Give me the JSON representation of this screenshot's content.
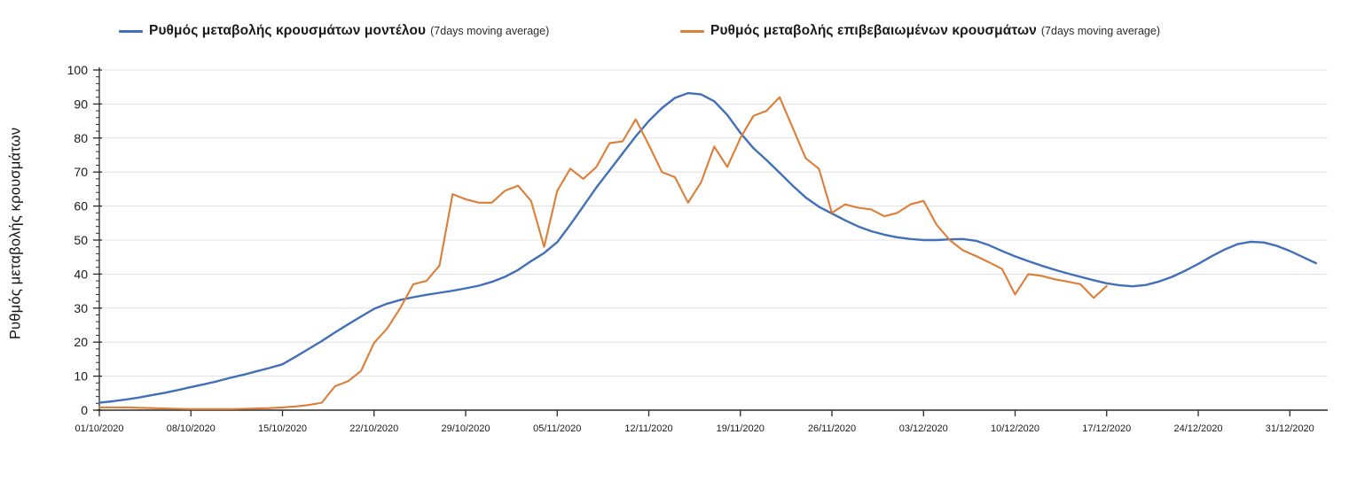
{
  "legend": {
    "series1": {
      "label": "Ρυθμός μεταβολής κρουσμάτων μοντέλου",
      "suffix": "(7days moving average)",
      "color": "#4170b8"
    },
    "series2": {
      "label": "Ρυθμός μεταβολής επιβεβαιωμένων κρουσμάτων",
      "suffix": "(7days moving average)",
      "color": "#dd7e38"
    }
  },
  "chart_data": {
    "type": "line",
    "title": "",
    "xlabel": "",
    "ylabel": "Ρυθμός μεταβολής κρουσμάτων",
    "ylim": [
      0,
      100
    ],
    "y_major_ticks": [
      0,
      10,
      20,
      30,
      40,
      50,
      60,
      70,
      80,
      90,
      100
    ],
    "y_minor_step": 2,
    "grid": "horizontal-light",
    "legend_position": "top",
    "x_tick_labels": [
      "01/10/2020",
      "08/10/2020",
      "15/10/2020",
      "22/10/2020",
      "29/10/2020",
      "05/11/2020",
      "12/11/2020",
      "19/11/2020",
      "26/11/2020",
      "03/12/2020",
      "10/12/2020",
      "17/12/2020",
      "24/12/2020",
      "31/12/2020"
    ],
    "x_tick_day_indices": [
      0,
      7,
      14,
      21,
      28,
      35,
      42,
      49,
      56,
      63,
      70,
      77,
      84,
      91
    ],
    "x_days_total": 93,
    "series": [
      {
        "name": "Ρυθμός μεταβολής κρουσμάτων μοντέλου (7days moving average)",
        "color": "#4170b8",
        "line_width": 2.4,
        "start_day": 0,
        "values": [
          2.2,
          2.6,
          3.1,
          3.7,
          4.4,
          5.1,
          5.9,
          6.8,
          7.6,
          8.5,
          9.5,
          10.4,
          11.4,
          12.4,
          13.5,
          15.7,
          18.0,
          20.3,
          22.8,
          25.2,
          27.5,
          29.8,
          31.3,
          32.4,
          33.2,
          33.9,
          34.5,
          35.1,
          35.8,
          36.6,
          37.7,
          39.2,
          41.2,
          43.8,
          46.2,
          49.4,
          54.5,
          60.0,
          65.5,
          70.5,
          75.5,
          80.5,
          85.0,
          88.8,
          91.8,
          93.2,
          92.8,
          90.8,
          86.8,
          81.5,
          77.0,
          73.5,
          69.8,
          66.0,
          62.5,
          59.8,
          57.8,
          55.8,
          54.0,
          52.6,
          51.6,
          50.8,
          50.3,
          50.0,
          50.0,
          50.2,
          50.3,
          49.8,
          48.5,
          46.8,
          45.2,
          43.8,
          42.5,
          41.3,
          40.2,
          39.2,
          38.2,
          37.3,
          36.7,
          36.4,
          36.8,
          37.8,
          39.2,
          41.0,
          43.0,
          45.2,
          47.2,
          48.8,
          49.5,
          49.3,
          48.3,
          46.8,
          45.0,
          43.2
        ]
      },
      {
        "name": "Ρυθμός μεταβολής επιβεβαιωμένων κρουσμάτων (7days moving average)",
        "color": "#dd7e38",
        "line_width": 2.1,
        "start_day": 0,
        "values": [
          0.8,
          0.8,
          0.8,
          0.7,
          0.6,
          0.5,
          0.4,
          0.3,
          0.3,
          0.3,
          0.3,
          0.4,
          0.5,
          0.6,
          0.8,
          1.1,
          1.5,
          2.2,
          7.0,
          8.5,
          11.5,
          19.8,
          24.0,
          30.0,
          37.0,
          38.0,
          42.5,
          63.5,
          62.0,
          61.0,
          61.0,
          64.5,
          66.0,
          61.5,
          48.0,
          64.5,
          71.0,
          68.0,
          71.5,
          78.5,
          79.0,
          85.5,
          78.0,
          70.0,
          68.5,
          61.0,
          67.0,
          77.5,
          71.5,
          80.0,
          86.5,
          88.0,
          92.0,
          83.0,
          74.0,
          71.0,
          58.0,
          60.5,
          59.5,
          59.0,
          57.0,
          58.0,
          60.5,
          61.5,
          54.5,
          50.0,
          47.0,
          45.3,
          43.5,
          41.5,
          34.0,
          40.0,
          39.5,
          38.5,
          37.8,
          37.0,
          33.0,
          36.5
        ]
      }
    ]
  }
}
